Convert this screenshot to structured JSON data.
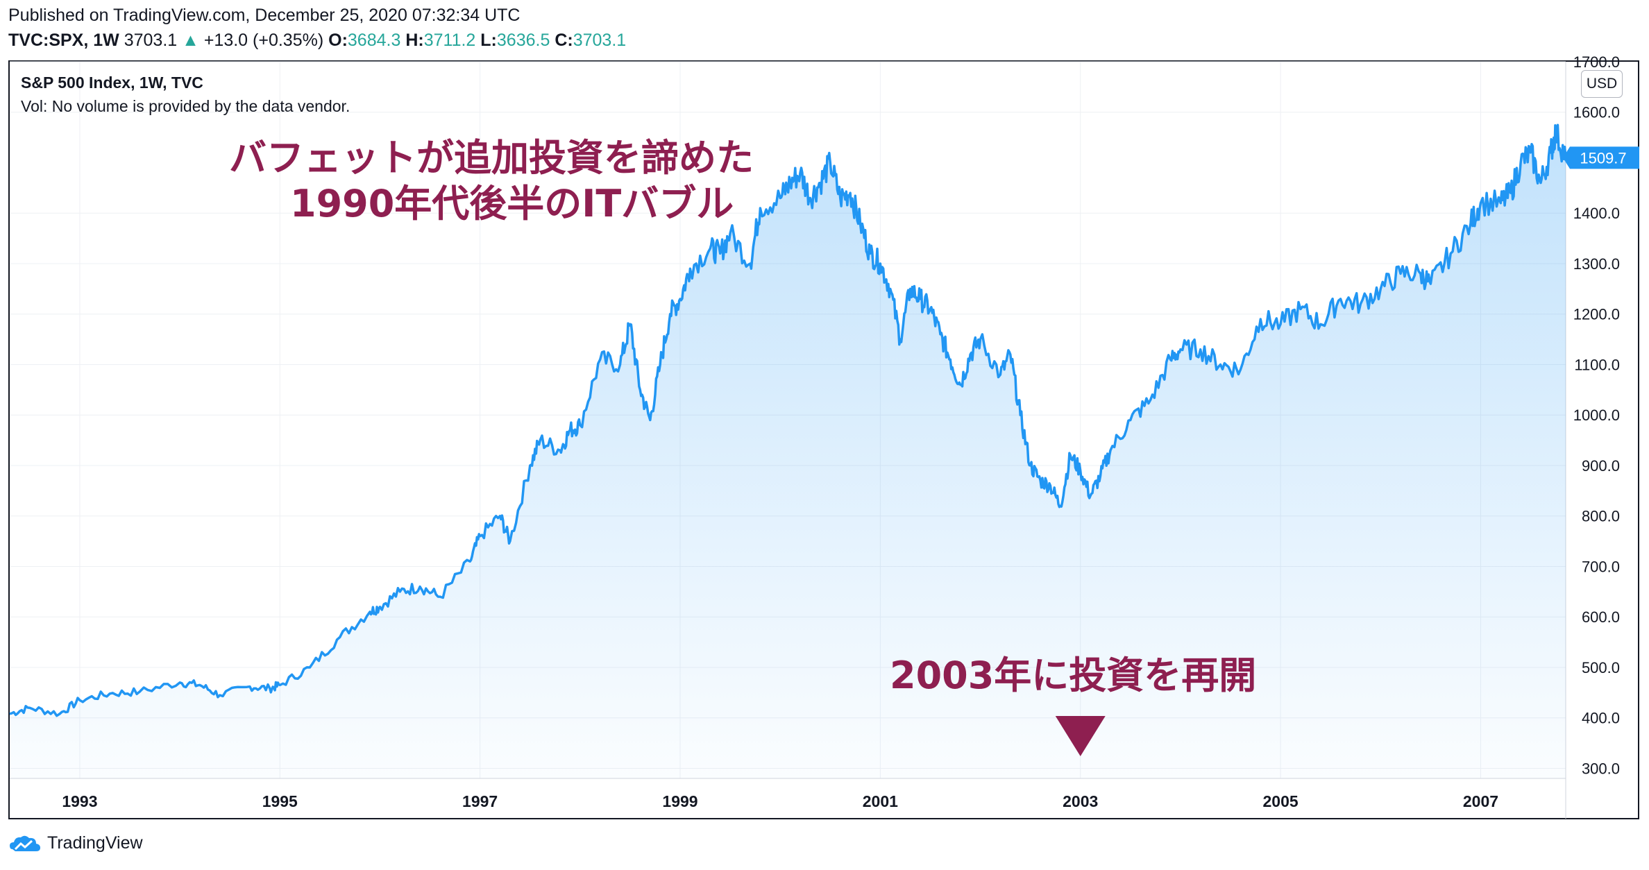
{
  "header": {
    "published": "Published on TradingView.com, December 25, 2020 07:32:34 UTC",
    "symbol": "TVC:SPX, 1W",
    "last": "3703.1",
    "change": "+13.0 (+0.35%)",
    "o_label": "O:",
    "o_value": "3684.3",
    "h_label": "H:",
    "h_value": "3711.2",
    "l_label": "L:",
    "l_value": "3636.5",
    "c_label": "C:",
    "c_value": "3703.1"
  },
  "legend": {
    "title": "S&P 500 Index, 1W, TVC",
    "volume": "Vol: No volume is provided by the data vendor."
  },
  "annotations": {
    "top_line1": "バフェットが追加投資を諦めた",
    "top_line2": "1990年代後半のITバブル",
    "bottom": "2003年に投資を再開"
  },
  "currency": "USD",
  "price_badge": "1509.7",
  "footer": {
    "brand": "TradingView"
  },
  "colors": {
    "line": "#2196f3",
    "fill": "#2196f3",
    "annotation": "#8e1f50",
    "badge": "#2196f3"
  },
  "chart_data": {
    "type": "area",
    "ylim": [
      280,
      1700
    ],
    "xlim": [
      1992.3,
      2007.85
    ],
    "yticks": [
      "1700.0",
      "1600.0",
      "1400.0",
      "1300.0",
      "1200.0",
      "1100.0",
      "1000.0",
      "900.0",
      "800.0",
      "700.0",
      "600.0",
      "500.0",
      "400.0",
      "300.0"
    ],
    "ytick_values": [
      1700,
      1600,
      1400,
      1300,
      1200,
      1100,
      1000,
      900,
      800,
      700,
      600,
      500,
      400,
      300
    ],
    "xticks": [
      "1993",
      "1995",
      "1997",
      "1999",
      "2001",
      "2003",
      "2005",
      "2007"
    ],
    "xtick_values": [
      1993,
      1995,
      1997,
      1999,
      2001,
      2003,
      2005,
      2007
    ],
    "series": [
      {
        "x": [
          1992.3,
          1992.5,
          1992.8,
          1993.0,
          1993.3,
          1993.6,
          1994.0,
          1994.2,
          1994.4,
          1994.7,
          1994.9,
          1995.0,
          1995.3,
          1995.6,
          1995.9,
          1996.0,
          1996.2,
          1996.4,
          1996.6,
          1996.9,
          1997.0,
          1997.2,
          1997.3,
          1997.5,
          1997.6,
          1997.8,
          1997.9,
          1998.0,
          1998.2,
          1998.4,
          1998.5,
          1998.6,
          1998.7,
          1998.8,
          1998.9,
          1999.0,
          1999.1,
          1999.3,
          1999.4,
          1999.5,
          1999.7,
          1999.8,
          2000.0,
          2000.1,
          2000.2,
          2000.3,
          2000.4,
          2000.5,
          2000.6,
          2000.7,
          2000.8,
          2000.9,
          2001.0,
          2001.1,
          2001.2,
          2001.3,
          2001.4,
          2001.5,
          2001.6,
          2001.7,
          2001.8,
          2001.9,
          2002.0,
          2002.2,
          2002.3,
          2002.4,
          2002.5,
          2002.6,
          2002.7,
          2002.8,
          2002.9,
          2003.0,
          2003.1,
          2003.2,
          2003.3,
          2003.5,
          2003.7,
          2003.9,
          2004.0,
          2004.2,
          2004.4,
          2004.6,
          2004.8,
          2005.0,
          2005.2,
          2005.4,
          2005.6,
          2005.8,
          2006.0,
          2006.2,
          2006.4,
          2006.5,
          2006.7,
          2006.9,
          2007.0,
          2007.2,
          2007.3,
          2007.4,
          2007.5,
          2007.6,
          2007.7,
          2007.75,
          2007.85
        ],
        "values": [
          408,
          420,
          408,
          435,
          448,
          452,
          470,
          465,
          445,
          462,
          458,
          465,
          500,
          560,
          610,
          620,
          650,
          660,
          640,
          710,
          760,
          800,
          750,
          900,
          950,
          930,
          970,
          980,
          1110,
          1100,
          1180,
          1050,
          990,
          1100,
          1200,
          1230,
          1290,
          1330,
          1320,
          1360,
          1300,
          1410,
          1430,
          1460,
          1480,
          1430,
          1460,
          1500,
          1430,
          1440,
          1380,
          1320,
          1300,
          1250,
          1150,
          1250,
          1230,
          1210,
          1160,
          1110,
          1060,
          1120,
          1150,
          1080,
          1120,
          1000,
          900,
          870,
          860,
          820,
          920,
          890,
          840,
          880,
          930,
          990,
          1030,
          1110,
          1130,
          1130,
          1100,
          1090,
          1190,
          1180,
          1210,
          1180,
          1230,
          1220,
          1250,
          1280,
          1280,
          1260,
          1320,
          1380,
          1420,
          1420,
          1440,
          1500,
          1520,
          1460,
          1520,
          1560,
          1509.7
        ]
      }
    ]
  }
}
